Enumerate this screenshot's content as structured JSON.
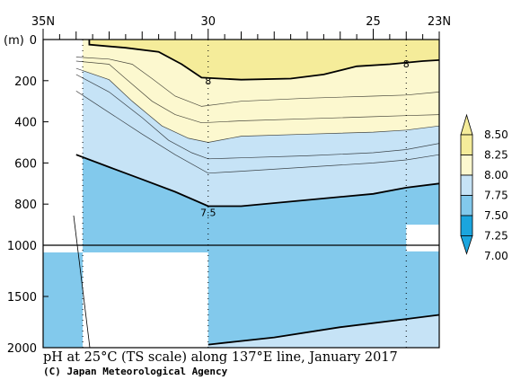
{
  "caption": "pH at 25°C (TS scale) along 137°E line, January 2017",
  "credit": "(C) Japan Meteorological Agency",
  "colors": {
    "band_above_8_00": "#f5ec9a",
    "band_7_75_8_00": "#fcf8cf",
    "band_7_50_7_75": "#c6e3f6",
    "band_7_25_7_50": "#82c9ec",
    "band_7_00_7_25": "#1ba5de",
    "no_data": "#ffffff"
  },
  "chart_data": {
    "type": "contour-section",
    "x_axis": {
      "quantity": "latitude (°N)",
      "range": [
        35,
        23
      ],
      "tick_labels": [
        {
          "lat": 35,
          "label": "35N"
        },
        {
          "lat": 30,
          "label": "30"
        },
        {
          "lat": 25,
          "label": "25"
        },
        {
          "lat": 23,
          "label": "23N"
        }
      ]
    },
    "y_axis": {
      "quantity": "depth",
      "unit_label": "(m)",
      "range": [
        0,
        2000
      ],
      "upper_panel_range": [
        0,
        1000
      ],
      "lower_panel_range": [
        1000,
        2000
      ],
      "tick_labels_upper": [
        "0",
        "200",
        "400",
        "600",
        "800",
        "1000"
      ],
      "tick_values_upper": [
        0,
        200,
        400,
        600,
        800,
        1000
      ],
      "tick_labels_lower": [
        "1500",
        "2000"
      ],
      "tick_values_lower": [
        1500,
        2000
      ]
    },
    "station_latitudes": [
      33.8,
      30.0,
      24.0
    ],
    "contours": [
      {
        "level": 8.0,
        "label": "8",
        "bold": true,
        "points": [
          [
            33.6,
            0
          ],
          [
            33.6,
            25
          ],
          [
            32.5,
            40
          ],
          [
            31.5,
            60
          ],
          [
            30.8,
            120
          ],
          [
            30.2,
            185
          ],
          [
            29,
            195
          ],
          [
            27.5,
            190
          ],
          [
            26.5,
            170
          ],
          [
            25.5,
            130
          ],
          [
            24.5,
            120
          ],
          [
            23.5,
            105
          ],
          [
            23,
            100
          ]
        ]
      },
      {
        "level": 7.9,
        "bold": false,
        "points": [
          [
            34,
            85
          ],
          [
            33,
            95
          ],
          [
            32.3,
            120
          ],
          [
            31.7,
            190
          ],
          [
            31,
            275
          ],
          [
            30.2,
            325
          ],
          [
            29,
            300
          ],
          [
            27,
            285
          ],
          [
            25,
            275
          ],
          [
            24,
            270
          ],
          [
            23,
            255
          ]
        ]
      },
      {
        "level": 7.8,
        "bold": false,
        "points": [
          [
            34,
            105
          ],
          [
            33,
            120
          ],
          [
            32.5,
            190
          ],
          [
            31.7,
            300
          ],
          [
            31,
            365
          ],
          [
            30.2,
            405
          ],
          [
            29,
            395
          ],
          [
            27,
            385
          ],
          [
            25,
            375
          ],
          [
            24,
            370
          ],
          [
            23,
            365
          ]
        ]
      },
      {
        "level": 7.75,
        "bold": false,
        "points": [
          [
            34,
            140
          ],
          [
            33,
            195
          ],
          [
            32.3,
            300
          ],
          [
            31.4,
            420
          ],
          [
            30.6,
            480
          ],
          [
            30,
            500
          ],
          [
            29,
            470
          ],
          [
            27,
            460
          ],
          [
            25,
            450
          ],
          [
            24,
            440
          ],
          [
            23,
            420
          ]
        ]
      },
      {
        "level": 7.7,
        "bold": false,
        "points": [
          [
            34,
            170
          ],
          [
            33,
            255
          ],
          [
            32,
            380
          ],
          [
            31.2,
            490
          ],
          [
            30.5,
            550
          ],
          [
            30,
            580
          ],
          [
            29,
            575
          ],
          [
            27,
            565
          ],
          [
            25,
            550
          ],
          [
            24,
            535
          ],
          [
            23,
            505
          ]
        ]
      },
      {
        "level": 7.6,
        "bold": false,
        "points": [
          [
            34,
            250
          ],
          [
            33,
            355
          ],
          [
            32,
            460
          ],
          [
            31,
            560
          ],
          [
            30,
            650
          ],
          [
            29,
            640
          ],
          [
            27,
            620
          ],
          [
            25,
            600
          ],
          [
            24,
            585
          ],
          [
            23,
            560
          ]
        ]
      },
      {
        "level": 7.5,
        "label": "7.5",
        "bold": true,
        "points": [
          [
            34,
            560
          ],
          [
            33,
            620
          ],
          [
            32,
            680
          ],
          [
            31,
            740
          ],
          [
            30,
            810
          ],
          [
            29,
            810
          ],
          [
            27,
            780
          ],
          [
            25,
            750
          ],
          [
            24,
            720
          ],
          [
            23,
            700
          ]
        ]
      },
      {
        "level": 7.4,
        "bold": true,
        "points": [
          [
            30,
            1970
          ],
          [
            28,
            1900
          ],
          [
            26,
            1800
          ],
          [
            24,
            1720
          ],
          [
            23,
            1680
          ]
        ]
      }
    ],
    "shading": [
      {
        "range": "above 8.00",
        "color": "#f5ec9a"
      },
      {
        "range": "7.75–8.00",
        "color": "#fcf8cf"
      },
      {
        "range": "7.50–7.75",
        "color": "#c6e3f6"
      },
      {
        "range": "7.25–7.50",
        "color": "#82c9ec"
      }
    ],
    "colorbar": {
      "tick_labels": [
        "8.50",
        "8.25",
        "8.00",
        "7.75",
        "7.50",
        "7.25",
        "7.00"
      ],
      "values": [
        8.5,
        8.25,
        8.0,
        7.75,
        7.5,
        7.25,
        7.0
      ],
      "colors": [
        "#f5ec9a",
        "#fcf8cf",
        "#c6e3f6",
        "#82c9ec",
        "#1ba5de"
      ],
      "placement": "right"
    },
    "no_data_regions": [
      {
        "lat_range": [
          35,
          33.8
        ],
        "depth_range": [
          0,
          1070
        ]
      },
      {
        "lat_range": [
          33.8,
          30.0
        ],
        "depth_range": [
          1070,
          2000
        ]
      },
      {
        "lat_range": [
          24.0,
          23.0
        ],
        "depth_range": [
          900,
          1060
        ]
      }
    ]
  }
}
